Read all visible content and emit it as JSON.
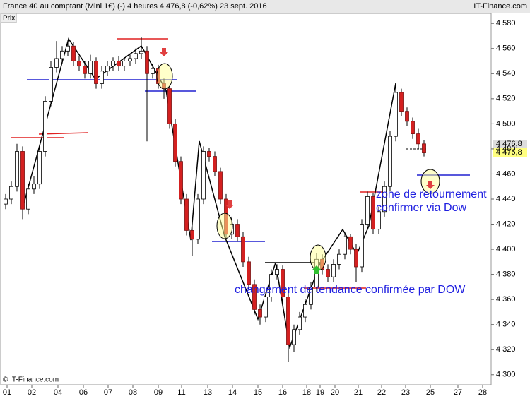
{
  "header": {
    "title": "France 40 au comptant (Mini 1€) (-)   4 heures   4 476,8 (-0,62%)   23 sept. 2016",
    "source": "IT-Finance.com",
    "price_caption": "Prix",
    "copyright": "© IT-Finance.com",
    "price_labels": [
      "4 476,8",
      "4 476,8"
    ]
  },
  "annotations": [
    "zone de retournement",
    "confirmer via Dow",
    "changement de tendance confirmée par DOW"
  ],
  "chart_data": {
    "type": "candlestick",
    "x_labels": [
      "01",
      "02",
      "04",
      "06",
      "07",
      "08",
      "09",
      "11",
      "13",
      "14",
      "15",
      "16",
      "18",
      "19",
      "20",
      "21",
      "22",
      "23",
      "25",
      "27",
      "28"
    ],
    "ylim": [
      4292,
      4588
    ],
    "yticks": [
      {
        "value": 4300,
        "label": "4 300"
      },
      {
        "value": 4320,
        "label": "4 320"
      },
      {
        "value": 4340,
        "label": "4 340"
      },
      {
        "value": 4360,
        "label": "4 360"
      },
      {
        "value": 4380,
        "label": "4 380"
      },
      {
        "value": 4400,
        "label": "4 400"
      },
      {
        "value": 4420,
        "label": "4 420"
      },
      {
        "value": 4440,
        "label": "4 440"
      },
      {
        "value": 4460,
        "label": "4 460"
      },
      {
        "value": 4480,
        "label": "4 480"
      },
      {
        "value": 4500,
        "label": "4 500"
      },
      {
        "value": 4520,
        "label": "4 520"
      },
      {
        "value": 4540,
        "label": "4 540"
      },
      {
        "value": 4560,
        "label": "4 560"
      },
      {
        "value": 4580,
        "label": "4 580"
      }
    ],
    "up_color": "#ffffff",
    "down_color": "#d42020",
    "open": [
      4436,
      4440,
      4450,
      4478,
      4432,
      4448,
      4452,
      4478,
      4518,
      4545,
      4552,
      4558,
      4562,
      4550,
      4546,
      4540,
      4550,
      4532,
      4542,
      4546,
      4550,
      4546,
      4550,
      4552,
      4556,
      4558,
      4540,
      4544,
      4532,
      4528,
      4500,
      4470,
      4440,
      4415,
      4408,
      4440,
      4478,
      4474,
      4462,
      4440,
      4412,
      4420,
      4410,
      4390,
      4372,
      4352,
      4346,
      4362,
      4380,
      4384,
      4362,
      4324,
      4336,
      4346,
      4356,
      4370,
      4392,
      4384,
      4378,
      4388,
      4396,
      4410,
      4400,
      4386,
      4420,
      4442,
      4416,
      4430,
      4450,
      4490,
      4525,
      4510,
      4502,
      4492,
      4484
    ],
    "high": [
      4444,
      4454,
      4484,
      4482,
      4452,
      4458,
      4482,
      4522,
      4550,
      4566,
      4562,
      4566,
      4565,
      4554,
      4550,
      4555,
      4553,
      4546,
      4550,
      4553,
      4554,
      4553,
      4556,
      4560,
      4569,
      4562,
      4548,
      4547,
      4536,
      4530,
      4504,
      4474,
      4444,
      4420,
      4444,
      4482,
      4481,
      4478,
      4465,
      4444,
      4426,
      4424,
      4414,
      4394,
      4376,
      4356,
      4366,
      4384,
      4388,
      4387,
      4366,
      4340,
      4350,
      4360,
      4374,
      4397,
      4396,
      4388,
      4392,
      4400,
      4414,
      4412,
      4404,
      4424,
      4446,
      4445,
      4434,
      4454,
      4494,
      4530,
      4528,
      4513,
      4505,
      4496,
      4487
    ],
    "low": [
      4432,
      4436,
      4446,
      4424,
      4428,
      4444,
      4448,
      4474,
      4514,
      4541,
      4548,
      4554,
      4546,
      4542,
      4536,
      4536,
      4528,
      4528,
      4538,
      4542,
      4542,
      4542,
      4546,
      4548,
      4552,
      4486,
      4536,
      4528,
      4520,
      4496,
      4466,
      4436,
      4411,
      4395,
      4404,
      4436,
      4470,
      4458,
      4436,
      4406,
      4408,
      4406,
      4386,
      4368,
      4348,
      4340,
      4342,
      4358,
      4376,
      4358,
      4310,
      4318,
      4332,
      4342,
      4352,
      4366,
      4380,
      4374,
      4374,
      4384,
      4392,
      4396,
      4374,
      4382,
      4416,
      4412,
      4412,
      4426,
      4446,
      4486,
      4506,
      4498,
      4488,
      4480,
      4474
    ],
    "close": [
      4440,
      4450,
      4478,
      4432,
      4448,
      4452,
      4478,
      4518,
      4545,
      4552,
      4558,
      4562,
      4550,
      4546,
      4540,
      4550,
      4532,
      4542,
      4546,
      4550,
      4546,
      4550,
      4552,
      4556,
      4558,
      4540,
      4544,
      4532,
      4528,
      4500,
      4470,
      4440,
      4415,
      4408,
      4440,
      4478,
      4474,
      4462,
      4440,
      4412,
      4420,
      4410,
      4390,
      4372,
      4352,
      4346,
      4362,
      4380,
      4384,
      4362,
      4324,
      4336,
      4346,
      4356,
      4370,
      4392,
      4384,
      4378,
      4388,
      4396,
      4410,
      4400,
      4386,
      4420,
      4442,
      4416,
      4430,
      4450,
      4490,
      4525,
      4510,
      4502,
      4492,
      4484,
      4476.8
    ]
  }
}
